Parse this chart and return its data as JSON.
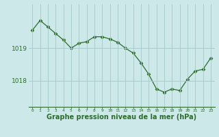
{
  "hours": [
    0,
    1,
    2,
    3,
    4,
    5,
    6,
    7,
    8,
    9,
    10,
    11,
    12,
    13,
    14,
    15,
    16,
    17,
    18,
    19,
    20,
    21,
    22,
    23
  ],
  "pressure": [
    1019.55,
    1019.85,
    1019.65,
    1019.45,
    1019.25,
    1019.0,
    1019.15,
    1019.2,
    1019.35,
    1019.35,
    1019.28,
    1019.18,
    1019.0,
    1018.85,
    1018.55,
    1018.2,
    1017.75,
    1017.65,
    1017.75,
    1017.7,
    1018.05,
    1018.3,
    1018.35,
    1018.7
  ],
  "line_color": "#2d6b2d",
  "marker_color": "#2d6b2d",
  "bg_color": "#cce8e8",
  "grid_color": "#aacccc",
  "xlabel": "Graphe pression niveau de la mer (hPa)",
  "xlabel_fontsize": 7,
  "ytick_labels": [
    "1019",
    "1018"
  ],
  "ytick_values": [
    1019.0,
    1018.0
  ],
  "ylim_min": 1017.2,
  "ylim_max": 1020.35,
  "xlim_min": -0.5,
  "xlim_max": 23.5
}
